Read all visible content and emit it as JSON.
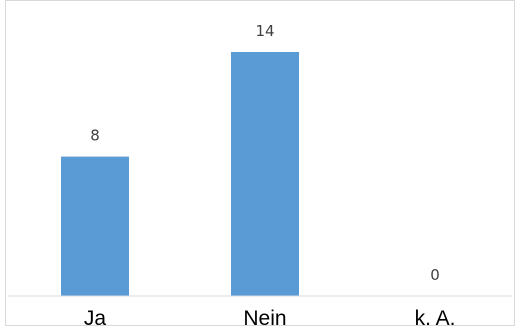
{
  "chart_data": {
    "type": "bar",
    "categories": [
      "Ja",
      "Nein",
      "k. A."
    ],
    "values": [
      8,
      14,
      0
    ],
    "title": "",
    "xlabel": "",
    "ylabel": "",
    "ylim": [
      0,
      14
    ],
    "grid": false,
    "legend": "none",
    "bar_color": "#5b9bd5",
    "data_labels": true
  }
}
